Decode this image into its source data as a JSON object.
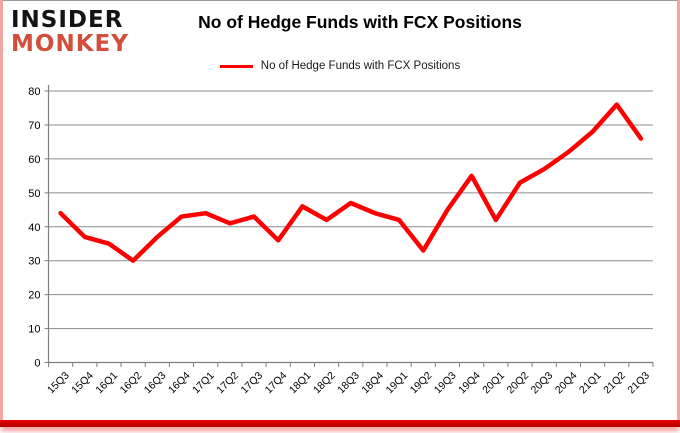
{
  "logo": {
    "line1": "INSIDER",
    "line2": "MONKEY"
  },
  "header": {
    "title": "No of Hedge Funds with FCX Positions"
  },
  "colors": {
    "line": "#fe0000",
    "logo_red": "#d14f3b",
    "grid": "#8c8c8c",
    "axis": "#7f7f7f",
    "border_pink": "#f2a7a3",
    "bottom_bar": "#e60000",
    "text": "#000000"
  },
  "chart_data": {
    "type": "line",
    "title": "No of Hedge Funds with FCX Positions",
    "categories": [
      "15Q3",
      "15Q4",
      "16Q1",
      "16Q2",
      "16Q3",
      "16Q4",
      "17Q1",
      "17Q2",
      "17Q3",
      "17Q4",
      "18Q1",
      "18Q2",
      "18Q3",
      "18Q4",
      "19Q1",
      "19Q2",
      "19Q3",
      "19Q4",
      "20Q1",
      "20Q2",
      "20Q3",
      "20Q4",
      "21Q1",
      "21Q2",
      "21Q3"
    ],
    "series": [
      {
        "name": "No of Hedge Funds with FCX Positions",
        "color": "#fe0000",
        "values": [
          44,
          37,
          35,
          30,
          37,
          43,
          44,
          41,
          43,
          36,
          46,
          42,
          47,
          44,
          42,
          33,
          45,
          55,
          42,
          53,
          57,
          62,
          68,
          76,
          66
        ]
      }
    ],
    "xlabel": "",
    "ylabel": "",
    "ylim": [
      0,
      80
    ],
    "y_ticks": [
      0,
      10,
      20,
      30,
      40,
      50,
      60,
      70,
      80
    ],
    "grid": "horizontal",
    "legend_position": "top"
  }
}
